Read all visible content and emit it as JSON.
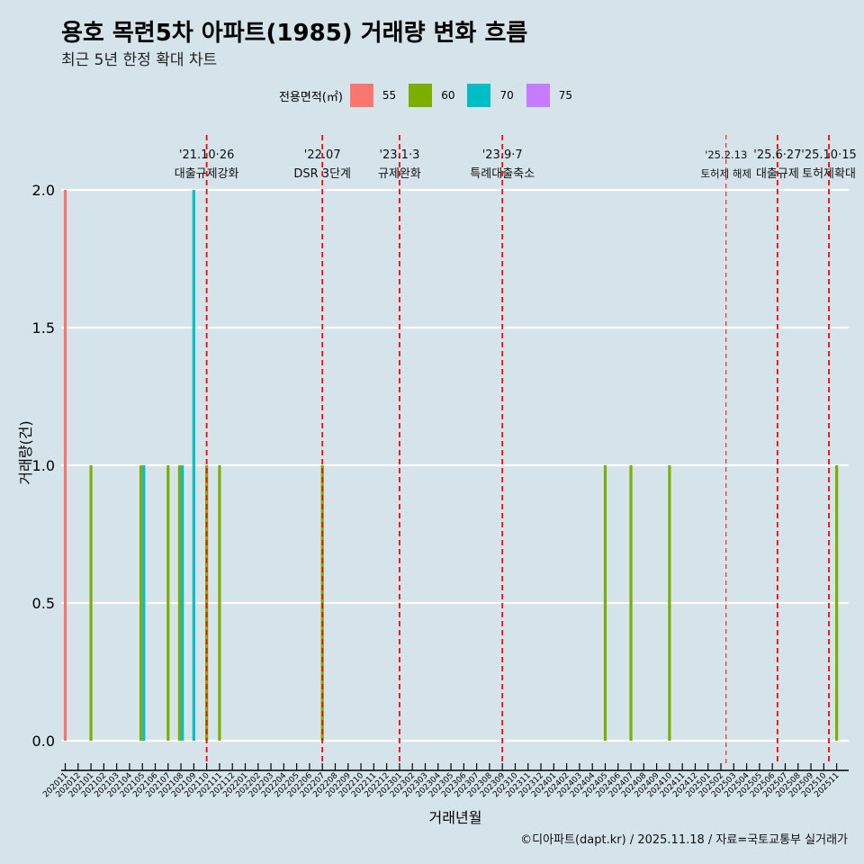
{
  "header": {
    "title": "용호 목련5차 아파트(1985) 거래량 변화 흐름",
    "subtitle": "최근 5년 한정 확대 차트"
  },
  "legend": {
    "title": "전용면적(㎡)",
    "items": [
      {
        "label": "55",
        "color": "#F8766D"
      },
      {
        "label": "60",
        "color": "#7CAE00"
      },
      {
        "label": "70",
        "color": "#00BFC4"
      },
      {
        "label": "75",
        "color": "#C77CFF"
      }
    ]
  },
  "caption": "©디아파트(dapt.kr) / 2025.11.18 / 자료=국토교통부 실거래가",
  "chart_data": {
    "type": "bar",
    "title": "용호 목련5차 아파트(1985) 거래량 변화 흐름",
    "subtitle": "최근 5년 한정 확대 차트",
    "xlabel": "거래년월",
    "ylabel": "거래량(건)",
    "ylim": [
      0,
      2
    ],
    "yticks": [
      "0.0",
      "0.5",
      "1.0",
      "1.5",
      "2.0"
    ],
    "grid": true,
    "legend_position": "top",
    "categories": [
      "202011",
      "202012",
      "202101",
      "202102",
      "202103",
      "202104",
      "202105",
      "202106",
      "202107",
      "202108",
      "202109",
      "202110",
      "202111",
      "202112",
      "202201",
      "202202",
      "202203",
      "202204",
      "202205",
      "202206",
      "202207",
      "202208",
      "202209",
      "202210",
      "202211",
      "202212",
      "202301",
      "202302",
      "202303",
      "202304",
      "202305",
      "202306",
      "202307",
      "202308",
      "202309",
      "202310",
      "202311",
      "202312",
      "202401",
      "202402",
      "202403",
      "202404",
      "202405",
      "202406",
      "202407",
      "202408",
      "202409",
      "202410",
      "202411",
      "202412",
      "202501",
      "202502",
      "202503",
      "202504",
      "202505",
      "202506",
      "202507",
      "202508",
      "202509",
      "202510",
      "202511"
    ],
    "bars": [
      {
        "month": "202011",
        "area": "55",
        "value": 2
      },
      {
        "month": "202101",
        "area": "60",
        "value": 1
      },
      {
        "month": "202105",
        "area": "60",
        "value": 1
      },
      {
        "month": "202105",
        "area": "70",
        "value": 1
      },
      {
        "month": "202107",
        "area": "60",
        "value": 1
      },
      {
        "month": "202108",
        "area": "60",
        "value": 1
      },
      {
        "month": "202108",
        "area": "70",
        "value": 1
      },
      {
        "month": "202109",
        "area": "70",
        "value": 2
      },
      {
        "month": "202110",
        "area": "60",
        "value": 1
      },
      {
        "month": "202111",
        "area": "60",
        "value": 1
      },
      {
        "month": "202207",
        "area": "60",
        "value": 1
      },
      {
        "month": "202405",
        "area": "60",
        "value": 1
      },
      {
        "month": "202407",
        "area": "60",
        "value": 1
      },
      {
        "month": "202410",
        "area": "60",
        "value": 1
      },
      {
        "month": "202511",
        "area": "60",
        "value": 1
      }
    ],
    "annotations": [
      {
        "month": "202110",
        "offset": 0.0,
        "date": "'21.10·26",
        "label": "대출규제강화",
        "style": "thick"
      },
      {
        "month": "202207",
        "offset": 0.0,
        "date": "'22.07",
        "label": "DSR 3단계",
        "style": "thick"
      },
      {
        "month": "202301",
        "offset": 0.0,
        "date": "'23.1·3",
        "label": "규제완화",
        "style": "thick"
      },
      {
        "month": "202309",
        "offset": 0.0,
        "date": "'23.9·7",
        "label": "특례대출축소",
        "style": "thick"
      },
      {
        "month": "202502",
        "offset": 0.4,
        "date": "'25.2.13",
        "label": "토허제 해제",
        "style": "thin"
      },
      {
        "month": "202506",
        "offset": 0.4,
        "date": "'25.6·27",
        "label": "대출규제",
        "style": "thick"
      },
      {
        "month": "202510",
        "offset": 0.4,
        "date": "'25.10·15",
        "label": "토허제확대",
        "style": "thick"
      }
    ]
  }
}
